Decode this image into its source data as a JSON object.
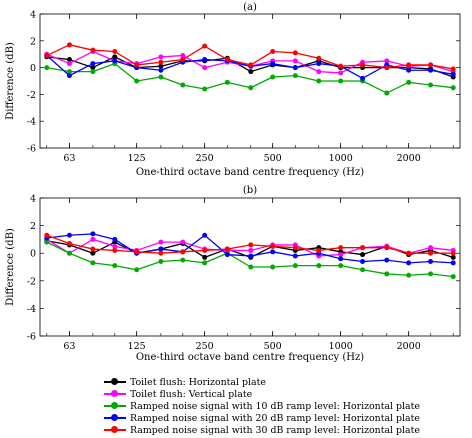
{
  "chart_data": [
    {
      "type": "line",
      "title": "(a)",
      "xlabel": "One-third octave band centre frequency (Hz)",
      "ylabel": "Difference (dB)",
      "x": [
        50,
        63,
        80,
        100,
        125,
        160,
        200,
        250,
        315,
        400,
        500,
        630,
        800,
        1000,
        1250,
        1600,
        2000,
        2500,
        3150
      ],
      "xticks": [
        "63",
        "125",
        "250",
        "500",
        "1000",
        "2000"
      ],
      "ylim": [
        -6,
        4
      ],
      "yticks": [
        -6,
        -4,
        -2,
        0,
        2,
        4
      ],
      "series": [
        {
          "name": "Toilet flush: Horizontal plate",
          "color": "#000000",
          "values": [
            0.8,
            0.6,
            0.0,
            0.8,
            0.0,
            0.1,
            0.5,
            0.5,
            0.7,
            -0.3,
            0.2,
            0.0,
            0.5,
            0.0,
            0.0,
            0.0,
            0.0,
            -0.1,
            -0.7
          ]
        },
        {
          "name": "Toilet flush: Vertical plate",
          "color": "#ff00ff",
          "values": [
            1.0,
            0.3,
            1.2,
            0.5,
            0.3,
            0.8,
            0.9,
            0.0,
            0.4,
            0.1,
            0.5,
            0.5,
            -0.3,
            -0.4,
            0.4,
            0.5,
            0.1,
            0.2,
            -0.3
          ]
        },
        {
          "name": "Ramped noise signal with 10 dB ramp level: Horizontal plate",
          "color": "#00aa00",
          "values": [
            0.0,
            -0.3,
            -0.3,
            0.3,
            -1.0,
            -0.7,
            -1.3,
            -1.6,
            -1.1,
            -1.5,
            -0.7,
            -0.6,
            -1.0,
            -1.0,
            -1.0,
            -1.9,
            -1.1,
            -1.3,
            -1.5
          ]
        },
        {
          "name": "Ramped noise signal with 20 dB ramp level: Horizontal plate",
          "color": "#0000ff",
          "values": [
            0.9,
            -0.6,
            0.3,
            0.5,
            0.0,
            -0.2,
            0.4,
            0.6,
            0.5,
            0.1,
            0.3,
            0.0,
            0.3,
            0.1,
            -0.8,
            0.2,
            -0.2,
            -0.2,
            -0.5
          ]
        },
        {
          "name": "Ramped noise signal with 30 dB ramp level: Horizontal plate",
          "color": "#ff0000",
          "values": [
            0.9,
            1.7,
            1.3,
            1.2,
            0.2,
            0.4,
            0.6,
            1.6,
            0.6,
            0.2,
            1.2,
            1.1,
            0.7,
            0.1,
            0.2,
            0.0,
            0.2,
            0.2,
            -0.1
          ]
        }
      ]
    },
    {
      "type": "line",
      "title": "(b)",
      "xlabel": "One-third octave band centre frequency (Hz)",
      "ylabel": "Difference (dB)",
      "x": [
        50,
        63,
        80,
        100,
        125,
        160,
        200,
        250,
        315,
        400,
        500,
        630,
        800,
        1000,
        1250,
        1600,
        2000,
        2500,
        3150
      ],
      "xticks": [
        "63",
        "125",
        "250",
        "500",
        "1000",
        "2000"
      ],
      "ylim": [
        -6,
        4
      ],
      "yticks": [
        -6,
        -4,
        -2,
        0,
        2,
        4
      ],
      "series": [
        {
          "name": "Toilet flush: Horizontal plate",
          "color": "#000000",
          "values": [
            0.9,
            0.6,
            0.0,
            0.8,
            0.0,
            0.3,
            0.7,
            -0.3,
            0.3,
            -0.3,
            0.5,
            0.2,
            0.4,
            0.1,
            -0.1,
            0.5,
            -0.1,
            0.2,
            -0.3
          ]
        },
        {
          "name": "Toilet flush: Vertical plate",
          "color": "#ff00ff",
          "values": [
            1.0,
            0.0,
            1.0,
            0.5,
            0.2,
            0.8,
            0.8,
            0.3,
            0.2,
            0.2,
            0.6,
            0.6,
            -0.2,
            -0.1,
            0.4,
            0.5,
            0.0,
            0.4,
            0.2
          ]
        },
        {
          "name": "Ramped noise signal with 10 dB ramp level: Horizontal plate",
          "color": "#00aa00",
          "values": [
            0.8,
            0.0,
            -0.7,
            -0.9,
            -1.2,
            -0.6,
            -0.5,
            -0.7,
            0.0,
            -1.0,
            -1.0,
            -0.9,
            -0.9,
            -0.9,
            -1.2,
            -1.5,
            -1.6,
            -1.5,
            -1.7
          ]
        },
        {
          "name": "Ramped noise signal with 20 dB ramp level: Horizontal plate",
          "color": "#0000ff",
          "values": [
            1.1,
            1.3,
            1.4,
            1.0,
            0.0,
            0.3,
            0.1,
            1.3,
            -0.1,
            -0.2,
            0.1,
            -0.2,
            0.0,
            -0.4,
            -0.6,
            -0.5,
            -0.7,
            -0.6,
            -0.7
          ]
        },
        {
          "name": "Ramped noise signal with 30 dB ramp level: Horizontal plate",
          "color": "#ff0000",
          "values": [
            1.3,
            0.7,
            0.3,
            0.2,
            0.1,
            0.0,
            0.1,
            0.2,
            0.3,
            0.6,
            0.5,
            0.4,
            0.2,
            0.4,
            0.4,
            0.4,
            0.0,
            0.0,
            0.0
          ]
        }
      ]
    }
  ]
}
